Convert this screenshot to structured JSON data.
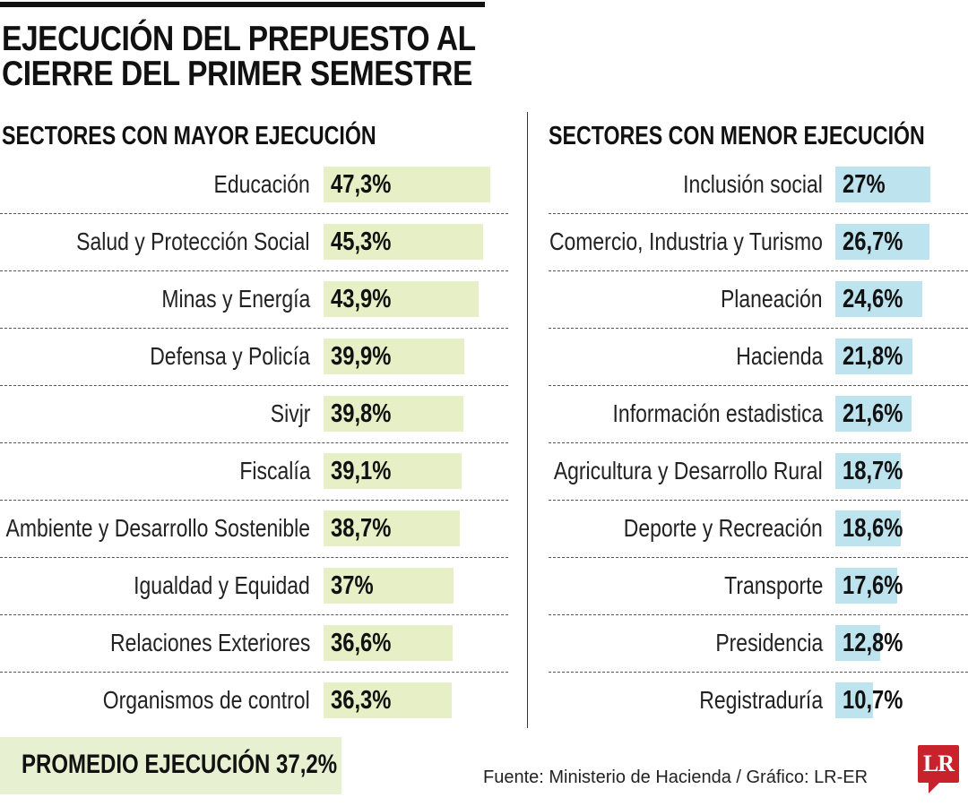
{
  "title_lines": [
    "EJECUCIÓN DEL PREPUESTO AL",
    "CIERRE DEL PRIMER SEMESTRE"
  ],
  "chart_data": [
    {
      "type": "bar",
      "orientation": "horizontal",
      "title": "SECTORES CON MAYOR EJECUCIÓN",
      "color": "#e6efc6",
      "categories": [
        "Educación",
        "Salud y Protección Social",
        "Minas y Energía",
        "Defensa y Policía",
        "Sivjr",
        "Fiscalía",
        "Ambiente y Desarrollo Sostenible",
        "Igualdad y Equidad",
        "Relaciones Exteriores",
        "Organismos de control"
      ],
      "values": [
        47.3,
        45.3,
        43.9,
        39.9,
        39.8,
        39.1,
        38.7,
        37,
        36.6,
        36.3
      ],
      "value_labels": [
        "47,3%",
        "45,3%",
        "43,9%",
        "39,9%",
        "39,8%",
        "39,1%",
        "38,7%",
        "37%",
        "36,6%",
        "36,3%"
      ]
    },
    {
      "type": "bar",
      "orientation": "horizontal",
      "title": "SECTORES CON MENOR EJECUCIÓN",
      "color": "#bde3ee",
      "categories": [
        "Inclusión social",
        "Comercio, Industria y Turismo",
        "Planeación",
        "Hacienda",
        "Información estadistica",
        "Agricultura y Desarrollo Rural",
        "Deporte y Recreación",
        "Transporte",
        "Presidencia",
        "Registraduría"
      ],
      "values": [
        27,
        26.7,
        24.6,
        21.8,
        21.6,
        18.7,
        18.6,
        17.6,
        12.8,
        10.7
      ],
      "value_labels": [
        "27%",
        "26,7%",
        "24,6%",
        "21,8%",
        "21,6%",
        "18,7%",
        "18,6%",
        "17,6%",
        "12,8%",
        "10,7%"
      ]
    }
  ],
  "average": {
    "label": "PROMEDIO EJECUCIÓN 37,2%",
    "value": 37.2,
    "color": "#e8f0d2"
  },
  "source": "Fuente: Ministerio de Hacienda / Gráfico: LR-ER",
  "logo": {
    "text": "LR",
    "color": "#c8232c"
  }
}
